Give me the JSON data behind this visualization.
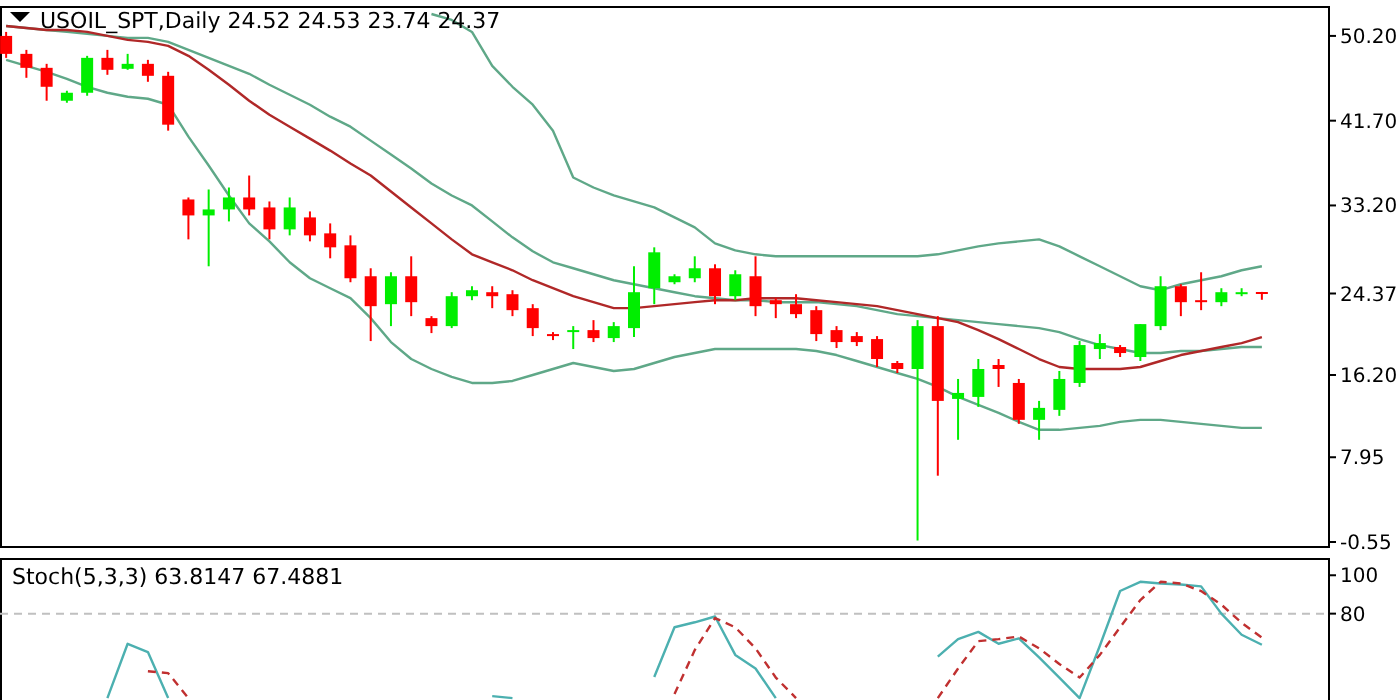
{
  "chart_data": [
    {
      "type": "candlestick",
      "title": "USOIL_SPT,Daily 24.52 24.53 23.74 24.37",
      "categories": [
        null,
        null,
        null,
        null,
        null,
        null,
        null,
        null,
        null,
        null,
        null,
        null,
        null,
        null,
        null,
        null,
        null,
        null,
        null,
        null,
        null,
        null,
        null,
        null,
        null,
        null,
        null,
        null,
        null,
        null,
        null,
        null,
        null,
        null,
        null,
        null,
        null,
        null,
        null,
        null,
        null,
        null,
        null,
        null,
        null,
        null,
        null,
        null,
        null,
        null,
        null,
        null,
        null,
        null,
        null,
        null,
        null,
        null,
        null,
        null,
        null,
        null,
        null
      ],
      "ohlc": [
        [
          50.2,
          50.6,
          48.0,
          48.4
        ],
        [
          48.4,
          48.8,
          46.0,
          47.0
        ],
        [
          47.0,
          47.4,
          43.7,
          45.1
        ],
        [
          43.7,
          44.7,
          43.5,
          44.5
        ],
        [
          44.5,
          48.2,
          44.2,
          48.0
        ],
        [
          48.0,
          48.8,
          46.3,
          46.8
        ],
        [
          46.9,
          48.4,
          46.8,
          47.4
        ],
        [
          47.4,
          47.8,
          45.6,
          46.2
        ],
        [
          46.2,
          46.6,
          40.7,
          41.3
        ],
        [
          33.8,
          34.0,
          29.8,
          32.2
        ],
        [
          32.2,
          34.8,
          27.1,
          32.8
        ],
        [
          32.8,
          35.0,
          31.6,
          34.0
        ],
        [
          34.0,
          36.2,
          32.2,
          32.8
        ],
        [
          33.0,
          33.6,
          29.8,
          30.8
        ],
        [
          30.8,
          34.0,
          30.2,
          33.0
        ],
        [
          32.0,
          32.6,
          29.6,
          30.2
        ],
        [
          30.4,
          31.4,
          27.9,
          29.0
        ],
        [
          29.2,
          30.2,
          25.5,
          25.9
        ],
        [
          26.1,
          26.9,
          19.6,
          23.1
        ],
        [
          23.3,
          26.5,
          21.1,
          26.1
        ],
        [
          26.1,
          28.1,
          22.1,
          23.5
        ],
        [
          21.9,
          22.1,
          20.4,
          21.1
        ],
        [
          21.1,
          24.5,
          20.9,
          24.1
        ],
        [
          24.1,
          25.1,
          23.7,
          24.7
        ],
        [
          24.5,
          25.1,
          22.9,
          24.1
        ],
        [
          24.3,
          24.7,
          22.1,
          22.7
        ],
        [
          22.9,
          23.3,
          20.1,
          20.9
        ],
        [
          20.3,
          20.5,
          19.7,
          20.1
        ],
        [
          20.5,
          21.1,
          18.8,
          20.7
        ],
        [
          20.7,
          21.7,
          19.5,
          19.9
        ],
        [
          19.9,
          21.5,
          19.5,
          21.1
        ],
        [
          20.9,
          27.1,
          20.0,
          24.5
        ],
        [
          24.9,
          29.0,
          23.3,
          28.5
        ],
        [
          25.5,
          26.3,
          25.3,
          26.1
        ],
        [
          25.9,
          28.1,
          25.5,
          26.9
        ],
        [
          26.9,
          27.3,
          23.3,
          24.1
        ],
        [
          24.1,
          26.7,
          23.7,
          26.3
        ],
        [
          26.1,
          28.1,
          22.1,
          23.1
        ],
        [
          23.7,
          23.9,
          21.9,
          23.3
        ],
        [
          23.3,
          24.3,
          21.9,
          22.3
        ],
        [
          22.7,
          23.1,
          19.6,
          20.3
        ],
        [
          20.7,
          21.1,
          18.9,
          19.5
        ],
        [
          20.1,
          20.5,
          19.1,
          19.5
        ],
        [
          19.8,
          20.1,
          17.0,
          17.8
        ],
        [
          17.4,
          17.6,
          16.4,
          16.8
        ],
        [
          16.8,
          21.7,
          -0.4,
          21.1
        ],
        [
          21.1,
          22.1,
          6.1,
          13.6
        ],
        [
          13.8,
          15.8,
          9.7,
          14.4
        ],
        [
          14.0,
          17.8,
          13.0,
          16.8
        ],
        [
          17.2,
          17.8,
          15.0,
          16.8
        ],
        [
          15.4,
          15.8,
          11.3,
          11.7
        ],
        [
          11.7,
          13.6,
          9.7,
          12.9
        ],
        [
          12.7,
          16.6,
          12.1,
          15.8
        ],
        [
          15.4,
          19.6,
          15.0,
          19.2
        ],
        [
          18.8,
          20.3,
          17.8,
          19.4
        ],
        [
          19.0,
          19.2,
          18.0,
          18.4
        ],
        [
          18.0,
          21.3,
          17.6,
          21.3
        ],
        [
          21.1,
          26.1,
          20.7,
          25.1
        ],
        [
          25.1,
          25.3,
          22.1,
          23.5
        ],
        [
          23.7,
          26.5,
          22.7,
          23.5
        ],
        [
          23.5,
          24.9,
          23.1,
          24.5
        ],
        [
          24.3,
          24.9,
          24.1,
          24.5
        ],
        [
          24.52,
          24.53,
          23.74,
          24.37
        ]
      ],
      "colors": [
        "#ff0000",
        "#ff0000",
        "#ff0000",
        "#00ee00",
        "#00ee00",
        "#ff0000",
        "#00ee00",
        "#ff0000",
        "#ff0000",
        "#ff0000",
        "#00ee00",
        "#00ee00",
        "#ff0000",
        "#ff0000",
        "#00ee00",
        "#ff0000",
        "#ff0000",
        "#ff0000",
        "#ff0000",
        "#00ee00",
        "#ff0000",
        "#ff0000",
        "#00ee00",
        "#00ee00",
        "#ff0000",
        "#ff0000",
        "#ff0000",
        "#ff0000",
        "#00ee00",
        "#ff0000",
        "#00ee00",
        "#00ee00",
        "#00ee00",
        "#00ee00",
        "#00ee00",
        "#ff0000",
        "#00ee00",
        "#ff0000",
        "#ff0000",
        "#ff0000",
        "#ff0000",
        "#ff0000",
        "#ff0000",
        "#ff0000",
        "#ff0000",
        "#00ee00",
        "#ff0000",
        "#00ee00",
        "#00ee00",
        "#ff0000",
        "#ff0000",
        "#00ee00",
        "#00ee00",
        "#00ee00",
        "#00ee00",
        "#ff0000",
        "#00ee00",
        "#00ee00",
        "#ff0000",
        "#ff0000",
        "#00ee00",
        "#00ee00",
        "#ff0000"
      ],
      "series": [
        {
          "type": "line",
          "color": "#5fa888",
          "values": [
            null,
            null,
            null,
            null,
            null,
            null,
            null,
            null,
            null,
            null,
            null,
            null,
            null,
            null,
            null,
            null,
            null,
            null,
            null,
            null,
            null,
            52.4,
            51.8,
            50.6,
            47.2,
            45.1,
            43.3,
            40.7,
            36.0,
            35.0,
            34.2,
            33.6,
            33.0,
            32.0,
            31.0,
            29.4,
            28.7,
            28.3,
            28.1,
            28.1,
            28.1,
            28.1,
            28.1,
            28.1,
            28.1,
            28.1,
            28.3,
            28.7,
            29.1,
            29.4,
            29.6,
            29.8,
            29.1,
            28.1,
            27.1,
            26.1,
            25.1,
            24.7,
            25.3,
            25.7,
            26.1,
            26.7,
            27.1
          ]
        },
        {
          "type": "line",
          "color": "#5fa888",
          "values": [
            51.2,
            51.0,
            50.8,
            50.6,
            50.4,
            50.2,
            50.0,
            50.0,
            49.6,
            48.8,
            48.0,
            47.2,
            46.4,
            45.3,
            44.3,
            43.3,
            42.1,
            41.1,
            39.7,
            38.3,
            36.9,
            35.4,
            34.2,
            33.2,
            31.6,
            30.0,
            28.6,
            27.5,
            26.9,
            26.3,
            25.7,
            25.3,
            24.9,
            24.5,
            24.1,
            23.9,
            23.7,
            23.7,
            23.5,
            23.5,
            23.5,
            23.3,
            23.1,
            22.7,
            22.3,
            22.1,
            21.9,
            21.7,
            21.5,
            21.3,
            21.1,
            20.9,
            20.5,
            19.8,
            19.2,
            18.8,
            18.4,
            18.4,
            18.6,
            18.6,
            18.8,
            19.0,
            19.0
          ]
        },
        {
          "type": "line",
          "color": "#b02828",
          "values": [
            51.2,
            51.0,
            50.8,
            50.8,
            50.6,
            50.2,
            49.8,
            49.6,
            49.2,
            48.2,
            46.8,
            45.3,
            43.7,
            42.3,
            41.1,
            39.9,
            38.7,
            37.4,
            36.2,
            34.6,
            33.0,
            31.4,
            29.8,
            28.3,
            27.5,
            26.7,
            25.7,
            24.9,
            24.1,
            23.5,
            22.9,
            22.9,
            23.1,
            23.3,
            23.5,
            23.7,
            23.7,
            23.9,
            23.9,
            23.9,
            23.7,
            23.5,
            23.3,
            23.1,
            22.7,
            22.3,
            21.9,
            21.5,
            20.7,
            19.8,
            18.8,
            17.8,
            17.0,
            16.8,
            16.8,
            16.8,
            17.0,
            17.6,
            18.2,
            18.6,
            19.0,
            19.4,
            20.0
          ]
        },
        {
          "type": "line",
          "color": "#5fa888",
          "values": [
            47.8,
            47.2,
            46.6,
            45.9,
            45.1,
            44.5,
            44.1,
            43.9,
            43.3,
            40.1,
            37.2,
            34.2,
            31.4,
            29.6,
            27.5,
            25.9,
            24.9,
            23.9,
            21.9,
            19.5,
            17.8,
            16.8,
            16.0,
            15.4,
            15.4,
            15.6,
            16.2,
            16.8,
            17.4,
            17.0,
            16.6,
            16.8,
            17.4,
            18.0,
            18.4,
            18.8,
            18.8,
            18.8,
            18.8,
            18.8,
            18.6,
            18.2,
            17.6,
            17.0,
            16.4,
            15.8,
            15.0,
            14.0,
            13.2,
            12.4,
            11.5,
            10.7,
            10.7,
            10.9,
            11.1,
            11.5,
            11.7,
            11.7,
            11.5,
            11.3,
            11.1,
            10.9,
            10.9
          ]
        }
      ],
      "ylim": [
        -0.95,
        53.2
      ],
      "yticks": [
        {
          "value": 50.2,
          "label": "50.20"
        },
        {
          "value": 41.7,
          "label": "41.70"
        },
        {
          "value": 33.2,
          "label": "33.20"
        },
        24.37,
        {
          "value": 16.2,
          "label": "16.20"
        },
        7.95,
        -0.55
      ],
      "tick_labels": "y"
    },
    {
      "type": "line",
      "title": "Stoch(5,3,3) 63.8147 67.4881",
      "categories": [
        null,
        null,
        null,
        null,
        null,
        null,
        null,
        null,
        null,
        null,
        null,
        null,
        null,
        null,
        null,
        null,
        null,
        null,
        null,
        null,
        null,
        null,
        null,
        null,
        null,
        null,
        null,
        null,
        null,
        null,
        null,
        null,
        null,
        null,
        null,
        null,
        null,
        null,
        null,
        null,
        null,
        null,
        null,
        null,
        null,
        null,
        null,
        null,
        null,
        null,
        null,
        null,
        null,
        null,
        null,
        null,
        null,
        null,
        null,
        null,
        null,
        null,
        null
      ],
      "series": [
        {
          "color": "#4cb0b0",
          "values": [
            null,
            null,
            null,
            null,
            null,
            36,
            64.3,
            60.0,
            36,
            null,
            null,
            null,
            null,
            null,
            null,
            null,
            null,
            null,
            null,
            null,
            null,
            null,
            null,
            null,
            37,
            36,
            null,
            null,
            null,
            null,
            null,
            null,
            47,
            72.9,
            75.5,
            78.5,
            58.5,
            51.4,
            36,
            null,
            null,
            null,
            null,
            null,
            null,
            null,
            57.6,
            66.7,
            70.5,
            64.3,
            67.1,
            57.2,
            46.7,
            36,
            63.3,
            91.8,
            96.6,
            95.7,
            95.2,
            94.2,
            80.0,
            69.0,
            63.8
          ]
        },
        {
          "color": "#c03030",
          "line_style": "dashed",
          "values": [
            null,
            null,
            null,
            null,
            null,
            null,
            null,
            50.0,
            49.0,
            36,
            null,
            null,
            null,
            null,
            null,
            null,
            null,
            null,
            null,
            null,
            null,
            null,
            null,
            null,
            null,
            null,
            null,
            null,
            null,
            null,
            null,
            null,
            null,
            38.1,
            61.0,
            77.7,
            72.9,
            61.9,
            46.7,
            36,
            null,
            null,
            null,
            null,
            null,
            null,
            36,
            51.4,
            65.7,
            66.7,
            68.1,
            61.9,
            53.8,
            46.7,
            58.5,
            72.9,
            87.1,
            96.6,
            95.7,
            91.8,
            84.7,
            75.2,
            67.5
          ]
        }
      ],
      "ylim": [
        35,
        109
      ],
      "yticks": [
        100,
        80
      ],
      "ref_lines": [
        {
          "axis": "y",
          "value": 80,
          "color": "#c0c0c0",
          "line_style": "dashed"
        }
      ],
      "tick_labels": "y"
    }
  ]
}
